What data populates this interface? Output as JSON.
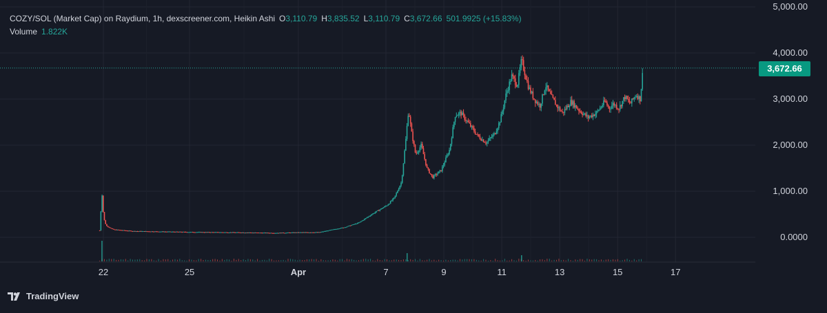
{
  "legend": {
    "symbol": "COZY/SOL (Market Cap) on Raydium, 1h, dexscreener.com, Heikin Ashi",
    "open_key": "O",
    "open": "3,110.79",
    "high_key": "H",
    "high": "3,835.52",
    "low_key": "L",
    "low": "3,110.79",
    "close_key": "C",
    "close": "3,672.66",
    "change": "501.9925 (+15.83%)",
    "volume_label": "Volume",
    "volume": "1.822K"
  },
  "price_label": "3,672.66",
  "branding": "TradingView",
  "colors": {
    "background": "#161a25",
    "up": "#26a69a",
    "down": "#ef5350",
    "axis_text": "#d1d4dc",
    "grid": "#232632",
    "badge": "#089981"
  },
  "chart_data": {
    "type": "candlestick",
    "style": "Heikin Ashi",
    "y_axis": {
      "ticks": [
        0,
        1000,
        2000,
        3000,
        4000,
        5000
      ],
      "tick_labels": [
        "0.0000",
        "1,000.00",
        "2,000.00",
        "3,000.00",
        "4,000.00",
        "5,000.00"
      ],
      "range": [
        -500,
        5050
      ]
    },
    "x_axis": {
      "ticks": [
        {
          "day": 21.95,
          "label": "22"
        },
        {
          "day": 25.0,
          "label": "25"
        },
        {
          "day": 28.85,
          "label": "Apr"
        },
        {
          "day": 31.95,
          "label": "7"
        },
        {
          "day": 34.0,
          "label": "9"
        },
        {
          "day": 36.05,
          "label": "11"
        },
        {
          "day": 38.1,
          "label": "13"
        },
        {
          "day": 40.15,
          "label": "15"
        },
        {
          "day": 42.2,
          "label": "17"
        }
      ],
      "range": [
        19.7,
        43.6
      ]
    },
    "current_price": 3672.66,
    "price_path": [
      [
        21.82,
        150
      ],
      [
        21.9,
        950
      ],
      [
        21.96,
        420
      ],
      [
        22.05,
        250
      ],
      [
        22.3,
        170
      ],
      [
        23.0,
        135
      ],
      [
        25.0,
        115
      ],
      [
        27.0,
        105
      ],
      [
        28.0,
        95
      ],
      [
        29.0,
        108
      ],
      [
        29.6,
        110
      ],
      [
        30.0,
        160
      ],
      [
        30.5,
        220
      ],
      [
        31.0,
        320
      ],
      [
        31.5,
        520
      ],
      [
        32.0,
        700
      ],
      [
        32.25,
        860
      ],
      [
        32.5,
        1200
      ],
      [
        32.65,
        2100
      ],
      [
        32.75,
        2780
      ],
      [
        32.85,
        2300
      ],
      [
        33.0,
        1800
      ],
      [
        33.2,
        2000
      ],
      [
        33.4,
        1500
      ],
      [
        33.6,
        1300
      ],
      [
        33.9,
        1450
      ],
      [
        34.2,
        1900
      ],
      [
        34.4,
        2650
      ],
      [
        34.6,
        2700
      ],
      [
        34.9,
        2450
      ],
      [
        35.2,
        2200
      ],
      [
        35.5,
        2050
      ],
      [
        35.8,
        2250
      ],
      [
        36.0,
        2550
      ],
      [
        36.2,
        3100
      ],
      [
        36.4,
        3500
      ],
      [
        36.6,
        3300
      ],
      [
        36.75,
        3850
      ],
      [
        36.85,
        3600
      ],
      [
        37.0,
        3250
      ],
      [
        37.2,
        3000
      ],
      [
        37.4,
        2850
      ],
      [
        37.6,
        3300
      ],
      [
        37.8,
        3050
      ],
      [
        38.0,
        2850
      ],
      [
        38.2,
        2700
      ],
      [
        38.5,
        2950
      ],
      [
        38.8,
        2750
      ],
      [
        39.1,
        2600
      ],
      [
        39.4,
        2700
      ],
      [
        39.7,
        2950
      ],
      [
        39.85,
        2800
      ],
      [
        40.0,
        2900
      ],
      [
        40.2,
        2800
      ],
      [
        40.4,
        3050
      ],
      [
        40.6,
        2900
      ],
      [
        40.8,
        3100
      ],
      [
        40.95,
        3000
      ],
      [
        41.05,
        3672
      ]
    ],
    "volume_spikes": [
      {
        "day": 21.9,
        "value": 1.0
      },
      {
        "day": 32.7,
        "value": 0.4
      },
      {
        "day": 36.75,
        "value": 0.3
      }
    ]
  }
}
